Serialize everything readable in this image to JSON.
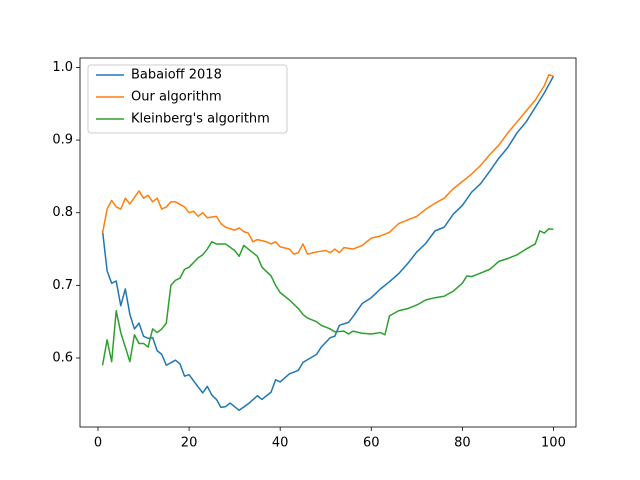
{
  "chart_data": {
    "type": "line",
    "xlim": [
      -3.95,
      104.95
    ],
    "ylim": [
      0.505,
      1.013
    ],
    "xticks": [
      0,
      20,
      40,
      60,
      80,
      100
    ],
    "yticks": [
      0.6,
      0.7,
      0.8,
      0.9,
      {
        "value": 1,
        "label": "1.0"
      }
    ],
    "legend": "upper left",
    "series": [
      {
        "name": "Babaioff 2018",
        "color": "#1f77b4",
        "x": [
          1,
          2,
          3,
          4,
          5,
          6,
          7,
          8,
          9,
          10,
          11,
          12,
          13,
          14,
          15,
          17,
          18,
          19,
          20,
          22,
          23,
          24,
          25,
          26,
          27,
          28,
          29,
          31,
          33,
          35,
          36,
          38,
          39,
          40,
          42,
          44,
          45,
          48,
          49,
          51,
          52,
          53,
          55,
          56,
          58,
          60,
          62,
          64,
          66,
          68,
          70,
          72,
          74,
          76,
          78,
          80,
          82,
          84,
          86,
          88,
          90,
          92,
          94,
          96,
          98,
          100
        ],
        "values": [
          0.775,
          0.72,
          0.703,
          0.706,
          0.672,
          0.695,
          0.66,
          0.64,
          0.648,
          0.63,
          0.627,
          0.628,
          0.61,
          0.605,
          0.59,
          0.597,
          0.592,
          0.575,
          0.577,
          0.56,
          0.552,
          0.561,
          0.549,
          0.543,
          0.532,
          0.533,
          0.538,
          0.528,
          0.537,
          0.548,
          0.543,
          0.553,
          0.57,
          0.567,
          0.578,
          0.583,
          0.594,
          0.605,
          0.615,
          0.628,
          0.63,
          0.645,
          0.649,
          0.657,
          0.675,
          0.683,
          0.695,
          0.705,
          0.716,
          0.73,
          0.746,
          0.758,
          0.775,
          0.78,
          0.798,
          0.81,
          0.828,
          0.84,
          0.857,
          0.875,
          0.89,
          0.91,
          0.925,
          0.945,
          0.965,
          0.988
        ]
      },
      {
        "name": "Our algorithm",
        "color": "#ff7f0e",
        "x": [
          1,
          2,
          3,
          4,
          5,
          6,
          7,
          9,
          10,
          11,
          12,
          13,
          14,
          15,
          16,
          17,
          19,
          20,
          21,
          22,
          23,
          24,
          26,
          27,
          28,
          30,
          31,
          32,
          33,
          34,
          35,
          37,
          38,
          39,
          40,
          42,
          43,
          44,
          45,
          46,
          48,
          50,
          51,
          52,
          53,
          54,
          56,
          58,
          60,
          62,
          64,
          66,
          68,
          70,
          72,
          74,
          76,
          78,
          80,
          82,
          84,
          86,
          88,
          90,
          92,
          94,
          96,
          98,
          99,
          100
        ],
        "values": [
          0.772,
          0.805,
          0.817,
          0.808,
          0.805,
          0.82,
          0.812,
          0.83,
          0.82,
          0.824,
          0.815,
          0.82,
          0.805,
          0.808,
          0.815,
          0.815,
          0.808,
          0.8,
          0.802,
          0.795,
          0.8,
          0.793,
          0.795,
          0.785,
          0.78,
          0.776,
          0.779,
          0.774,
          0.772,
          0.76,
          0.763,
          0.76,
          0.757,
          0.76,
          0.753,
          0.75,
          0.743,
          0.745,
          0.757,
          0.743,
          0.746,
          0.748,
          0.745,
          0.75,
          0.745,
          0.752,
          0.75,
          0.755,
          0.765,
          0.768,
          0.773,
          0.785,
          0.79,
          0.795,
          0.805,
          0.813,
          0.82,
          0.833,
          0.843,
          0.853,
          0.865,
          0.88,
          0.893,
          0.91,
          0.925,
          0.94,
          0.955,
          0.975,
          0.99,
          0.988
        ]
      },
      {
        "name": "Kleinberg's algorithm",
        "color": "#2ca02c",
        "x": [
          1,
          2,
          3,
          4,
          5,
          6,
          7,
          8,
          9,
          10,
          11,
          12,
          13,
          14,
          15,
          16,
          17,
          18,
          19,
          20,
          22,
          23,
          24,
          25,
          26,
          28,
          30,
          31,
          32,
          34,
          35,
          36,
          38,
          39,
          40,
          42,
          44,
          45,
          46,
          48,
          49,
          51,
          52,
          54,
          55,
          56,
          58,
          60,
          62,
          63,
          64,
          66,
          68,
          70,
          72,
          74,
          76,
          78,
          80,
          81,
          82,
          84,
          86,
          88,
          90,
          92,
          94,
          96,
          97,
          98,
          99,
          100
        ],
        "values": [
          0.59,
          0.625,
          0.595,
          0.665,
          0.635,
          0.615,
          0.595,
          0.632,
          0.62,
          0.62,
          0.615,
          0.64,
          0.635,
          0.64,
          0.648,
          0.7,
          0.707,
          0.71,
          0.722,
          0.725,
          0.738,
          0.742,
          0.75,
          0.76,
          0.757,
          0.757,
          0.748,
          0.74,
          0.755,
          0.745,
          0.74,
          0.725,
          0.713,
          0.7,
          0.69,
          0.68,
          0.668,
          0.66,
          0.655,
          0.65,
          0.645,
          0.64,
          0.636,
          0.637,
          0.633,
          0.637,
          0.634,
          0.633,
          0.635,
          0.632,
          0.658,
          0.665,
          0.668,
          0.673,
          0.68,
          0.683,
          0.685,
          0.692,
          0.703,
          0.713,
          0.712,
          0.717,
          0.722,
          0.733,
          0.737,
          0.742,
          0.75,
          0.757,
          0.775,
          0.772,
          0.778,
          0.777
        ]
      }
    ]
  }
}
